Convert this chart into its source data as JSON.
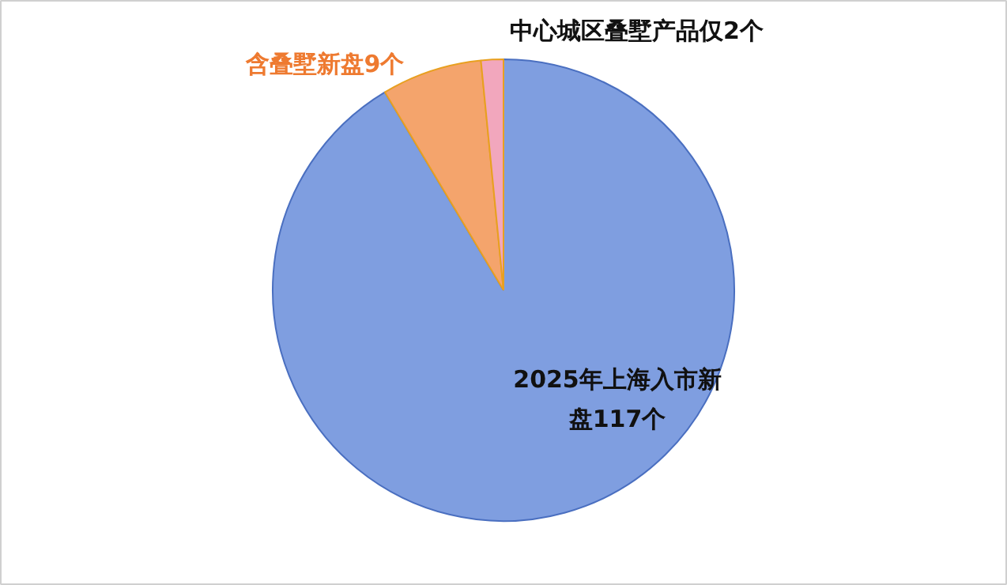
{
  "chart_data": {
    "type": "pie",
    "categories": [
      "2025年上海入市新盘117个",
      "含叠墅新盘9个",
      "中心城区叠墅产品仅2个"
    ],
    "values": [
      117,
      9,
      2
    ],
    "colors": [
      "#7f9ee0",
      "#f4a46c",
      "#f2a7bd"
    ]
  }
}
